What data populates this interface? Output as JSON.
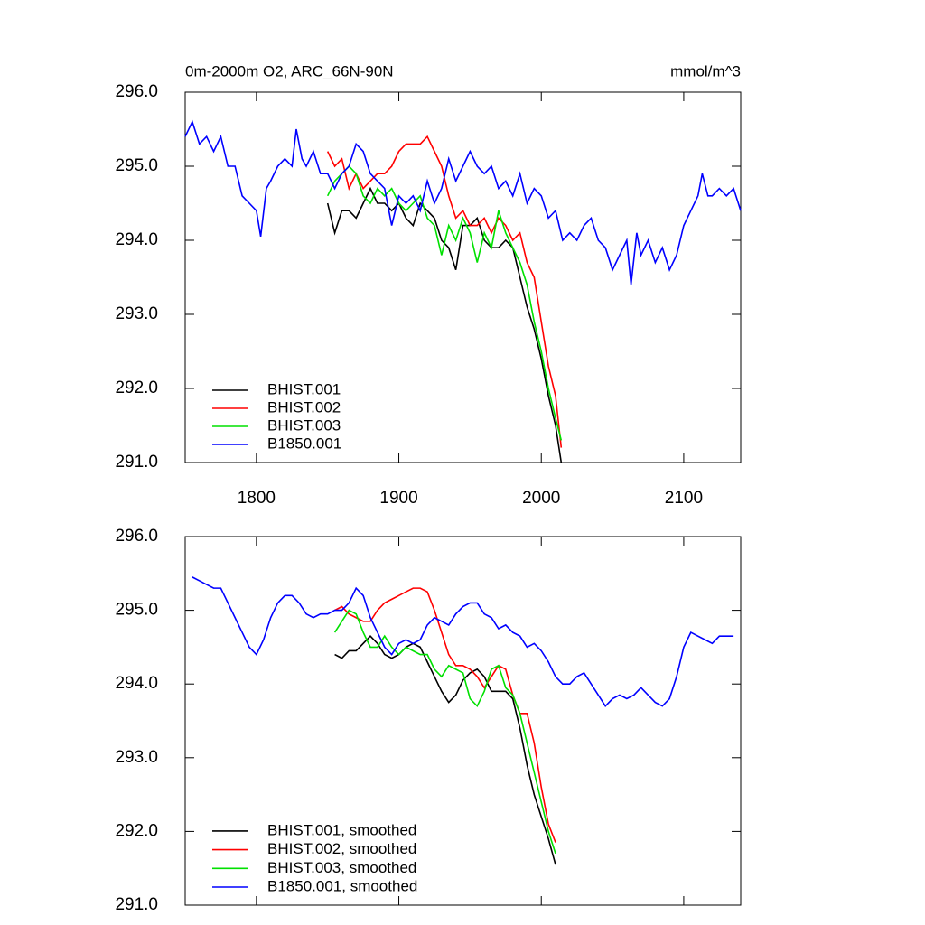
{
  "chart_data": [
    {
      "type": "line",
      "title": "0m-2000m O2, ARC_66N-90N",
      "units": "mmol/m^3",
      "xlim": [
        1750,
        2140
      ],
      "ylim": [
        291,
        296
      ],
      "xticks": [
        1800,
        1900,
        2000,
        2100
      ],
      "xtick_labels": true,
      "yticks": [
        {
          "value": 291,
          "label": "291.0"
        },
        {
          "value": 292,
          "label": "292.0"
        },
        {
          "value": 293,
          "label": "293.0"
        },
        {
          "value": 294,
          "label": "294.0"
        },
        {
          "value": 295,
          "label": "295.0"
        },
        {
          "value": 296,
          "label": "296.0"
        }
      ],
      "legend": "lower left",
      "series": [
        {
          "name": "BHIST.001",
          "color": "#000000",
          "x": [
            1850,
            1855,
            1860,
            1865,
            1870,
            1875,
            1880,
            1885,
            1890,
            1895,
            1900,
            1905,
            1910,
            1915,
            1920,
            1925,
            1930,
            1935,
            1940,
            1945,
            1950,
            1955,
            1960,
            1965,
            1970,
            1975,
            1980,
            1985,
            1990,
            1995,
            2000,
            2005,
            2010,
            2014
          ],
          "values": [
            294.5,
            294.1,
            294.4,
            294.4,
            294.3,
            294.5,
            294.7,
            294.5,
            294.5,
            294.4,
            294.5,
            294.3,
            294.2,
            294.5,
            294.4,
            294.3,
            294.0,
            293.9,
            293.6,
            294.2,
            294.2,
            294.3,
            294.0,
            293.9,
            293.9,
            294.0,
            293.9,
            293.5,
            293.1,
            292.8,
            292.4,
            291.9,
            291.5,
            291.0
          ]
        },
        {
          "name": "BHIST.002",
          "color": "#ff0000",
          "x": [
            1850,
            1855,
            1860,
            1865,
            1870,
            1875,
            1880,
            1885,
            1890,
            1895,
            1900,
            1905,
            1910,
            1915,
            1920,
            1925,
            1930,
            1935,
            1940,
            1945,
            1950,
            1955,
            1960,
            1965,
            1970,
            1975,
            1980,
            1985,
            1990,
            1995,
            2000,
            2005,
            2010,
            2014
          ],
          "values": [
            295.2,
            295.0,
            295.1,
            294.7,
            294.9,
            294.7,
            294.8,
            294.9,
            294.9,
            295.0,
            295.2,
            295.3,
            295.3,
            295.3,
            295.4,
            295.2,
            295.0,
            294.6,
            294.3,
            294.4,
            294.2,
            294.2,
            294.3,
            294.1,
            294.3,
            294.2,
            294.0,
            294.1,
            293.7,
            293.5,
            292.9,
            292.3,
            291.9,
            291.2
          ]
        },
        {
          "name": "BHIST.003",
          "color": "#00e000",
          "x": [
            1850,
            1855,
            1860,
            1865,
            1870,
            1875,
            1880,
            1885,
            1890,
            1895,
            1900,
            1905,
            1910,
            1915,
            1920,
            1925,
            1930,
            1935,
            1940,
            1945,
            1950,
            1955,
            1960,
            1965,
            1970,
            1975,
            1980,
            1985,
            1990,
            1995,
            2000,
            2005,
            2010,
            2014
          ],
          "values": [
            294.6,
            294.8,
            294.9,
            295.0,
            294.9,
            294.6,
            294.5,
            294.7,
            294.6,
            294.7,
            294.5,
            294.4,
            294.5,
            294.6,
            294.3,
            294.2,
            293.8,
            294.2,
            294.0,
            294.3,
            294.1,
            293.7,
            294.1,
            293.9,
            294.4,
            294.1,
            293.9,
            293.7,
            293.4,
            292.9,
            292.5,
            292.0,
            291.6,
            291.3
          ]
        },
        {
          "name": "B1850.001",
          "color": "#0000ff",
          "x": [
            1750,
            1755,
            1760,
            1765,
            1770,
            1775,
            1780,
            1785,
            1790,
            1795,
            1800,
            1803,
            1807,
            1810,
            1815,
            1820,
            1825,
            1828,
            1832,
            1835,
            1840,
            1845,
            1850,
            1855,
            1860,
            1865,
            1870,
            1875,
            1880,
            1885,
            1890,
            1895,
            1900,
            1905,
            1910,
            1915,
            1920,
            1925,
            1930,
            1935,
            1940,
            1945,
            1950,
            1955,
            1960,
            1965,
            1970,
            1975,
            1980,
            1985,
            1990,
            1995,
            2000,
            2005,
            2010,
            2015,
            2020,
            2025,
            2030,
            2035,
            2040,
            2045,
            2050,
            2055,
            2060,
            2063,
            2067,
            2070,
            2075,
            2080,
            2085,
            2090,
            2095,
            2100,
            2105,
            2110,
            2113,
            2117,
            2120,
            2125,
            2130,
            2135,
            2140
          ],
          "values": [
            295.4,
            295.6,
            295.3,
            295.4,
            295.2,
            295.4,
            295.0,
            295.0,
            294.6,
            294.5,
            294.4,
            294.05,
            294.7,
            294.8,
            295.0,
            295.1,
            295.0,
            295.5,
            295.1,
            295.0,
            295.2,
            294.9,
            294.9,
            294.7,
            294.9,
            295.0,
            295.3,
            295.2,
            294.9,
            294.8,
            294.7,
            294.2,
            294.6,
            294.5,
            294.6,
            294.4,
            294.8,
            294.5,
            294.7,
            295.1,
            294.8,
            295.0,
            295.2,
            295.0,
            294.9,
            295.0,
            294.7,
            294.8,
            294.6,
            294.9,
            294.5,
            294.7,
            294.6,
            294.3,
            294.4,
            294.0,
            294.1,
            294.0,
            294.2,
            294.3,
            294.0,
            293.9,
            293.6,
            293.8,
            294.0,
            293.4,
            294.1,
            293.8,
            294.0,
            293.7,
            293.9,
            293.6,
            293.8,
            294.2,
            294.4,
            294.6,
            294.9,
            294.6,
            294.6,
            294.7,
            294.6,
            294.7,
            294.4
          ]
        }
      ]
    },
    {
      "type": "line",
      "xlim": [
        1750,
        2140
      ],
      "ylim": [
        291,
        296
      ],
      "xticks": [
        1800,
        1900,
        2000,
        2100
      ],
      "xtick_labels": false,
      "yticks": [
        {
          "value": 291,
          "label": "291.0"
        },
        {
          "value": 292,
          "label": "292.0"
        },
        {
          "value": 293,
          "label": "293.0"
        },
        {
          "value": 294,
          "label": "294.0"
        },
        {
          "value": 295,
          "label": "295.0"
        },
        {
          "value": 296,
          "label": "296.0"
        }
      ],
      "legend": "lower left",
      "series": [
        {
          "name": "BHIST.001, smoothed",
          "color": "#000000",
          "x": [
            1855,
            1860,
            1865,
            1870,
            1875,
            1880,
            1885,
            1890,
            1895,
            1900,
            1905,
            1910,
            1915,
            1920,
            1925,
            1930,
            1935,
            1940,
            1945,
            1950,
            1955,
            1960,
            1965,
            1970,
            1975,
            1980,
            1985,
            1990,
            1995,
            2000,
            2005,
            2010
          ],
          "values": [
            294.4,
            294.35,
            294.45,
            294.45,
            294.55,
            294.65,
            294.55,
            294.4,
            294.35,
            294.4,
            294.5,
            294.55,
            294.5,
            294.3,
            294.1,
            293.9,
            293.75,
            293.85,
            294.05,
            294.15,
            294.2,
            294.1,
            293.9,
            293.9,
            293.9,
            293.8,
            293.4,
            292.9,
            292.5,
            292.2,
            291.9,
            291.55
          ]
        },
        {
          "name": "BHIST.002, smoothed",
          "color": "#ff0000",
          "x": [
            1855,
            1860,
            1865,
            1870,
            1875,
            1880,
            1885,
            1890,
            1895,
            1900,
            1905,
            1910,
            1915,
            1920,
            1925,
            1930,
            1935,
            1940,
            1945,
            1950,
            1955,
            1960,
            1965,
            1970,
            1975,
            1980,
            1985,
            1990,
            1995,
            2000,
            2005,
            2010
          ],
          "values": [
            295.0,
            295.05,
            294.95,
            294.9,
            294.85,
            294.85,
            295.0,
            295.1,
            295.15,
            295.2,
            295.25,
            295.3,
            295.3,
            295.25,
            295.0,
            294.7,
            294.4,
            294.25,
            294.25,
            294.2,
            294.1,
            293.95,
            294.1,
            294.25,
            294.2,
            293.85,
            293.6,
            293.6,
            293.2,
            292.6,
            292.1,
            291.85
          ]
        },
        {
          "name": "BHIST.003, smoothed",
          "color": "#00e000",
          "x": [
            1855,
            1860,
            1865,
            1870,
            1875,
            1880,
            1885,
            1890,
            1895,
            1900,
            1905,
            1910,
            1915,
            1920,
            1925,
            1930,
            1935,
            1940,
            1945,
            1950,
            1955,
            1960,
            1965,
            1970,
            1975,
            1980,
            1985,
            1990,
            1995,
            2000,
            2005,
            2010
          ],
          "values": [
            294.7,
            294.85,
            295.0,
            294.95,
            294.7,
            294.5,
            294.5,
            294.65,
            294.5,
            294.4,
            294.5,
            294.45,
            294.4,
            294.4,
            294.2,
            294.1,
            294.25,
            294.2,
            294.15,
            293.8,
            293.7,
            293.9,
            294.2,
            294.25,
            293.95,
            293.85,
            293.6,
            293.2,
            292.8,
            292.4,
            292.0,
            291.7
          ]
        },
        {
          "name": "B1850.001, smoothed",
          "color": "#0000ff",
          "x": [
            1755,
            1760,
            1765,
            1770,
            1775,
            1780,
            1785,
            1790,
            1795,
            1800,
            1805,
            1810,
            1815,
            1820,
            1825,
            1830,
            1835,
            1840,
            1845,
            1850,
            1855,
            1860,
            1865,
            1870,
            1875,
            1880,
            1885,
            1890,
            1895,
            1900,
            1905,
            1910,
            1915,
            1920,
            1925,
            1930,
            1935,
            1940,
            1945,
            1950,
            1955,
            1960,
            1965,
            1970,
            1975,
            1980,
            1985,
            1990,
            1995,
            2000,
            2005,
            2010,
            2015,
            2020,
            2025,
            2030,
            2035,
            2040,
            2045,
            2050,
            2055,
            2060,
            2065,
            2070,
            2075,
            2080,
            2085,
            2090,
            2095,
            2100,
            2105,
            2110,
            2115,
            2120,
            2125,
            2130,
            2135
          ],
          "values": [
            295.45,
            295.4,
            295.35,
            295.3,
            295.3,
            295.1,
            294.9,
            294.7,
            294.5,
            294.4,
            294.6,
            294.9,
            295.1,
            295.2,
            295.2,
            295.1,
            294.95,
            294.9,
            294.95,
            294.95,
            295.0,
            295.0,
            295.1,
            295.3,
            295.2,
            294.9,
            294.7,
            294.5,
            294.4,
            294.55,
            294.6,
            294.55,
            294.6,
            294.8,
            294.9,
            294.85,
            294.8,
            294.95,
            295.05,
            295.1,
            295.1,
            294.95,
            294.9,
            294.75,
            294.8,
            294.7,
            294.65,
            294.5,
            294.55,
            294.45,
            294.3,
            294.1,
            294.0,
            294.0,
            294.1,
            294.15,
            294.0,
            293.85,
            293.7,
            293.8,
            293.85,
            293.8,
            293.85,
            293.95,
            293.85,
            293.75,
            293.7,
            293.8,
            294.1,
            294.5,
            294.7,
            294.65,
            294.6,
            294.55,
            294.65,
            294.65,
            294.65
          ]
        }
      ]
    }
  ]
}
